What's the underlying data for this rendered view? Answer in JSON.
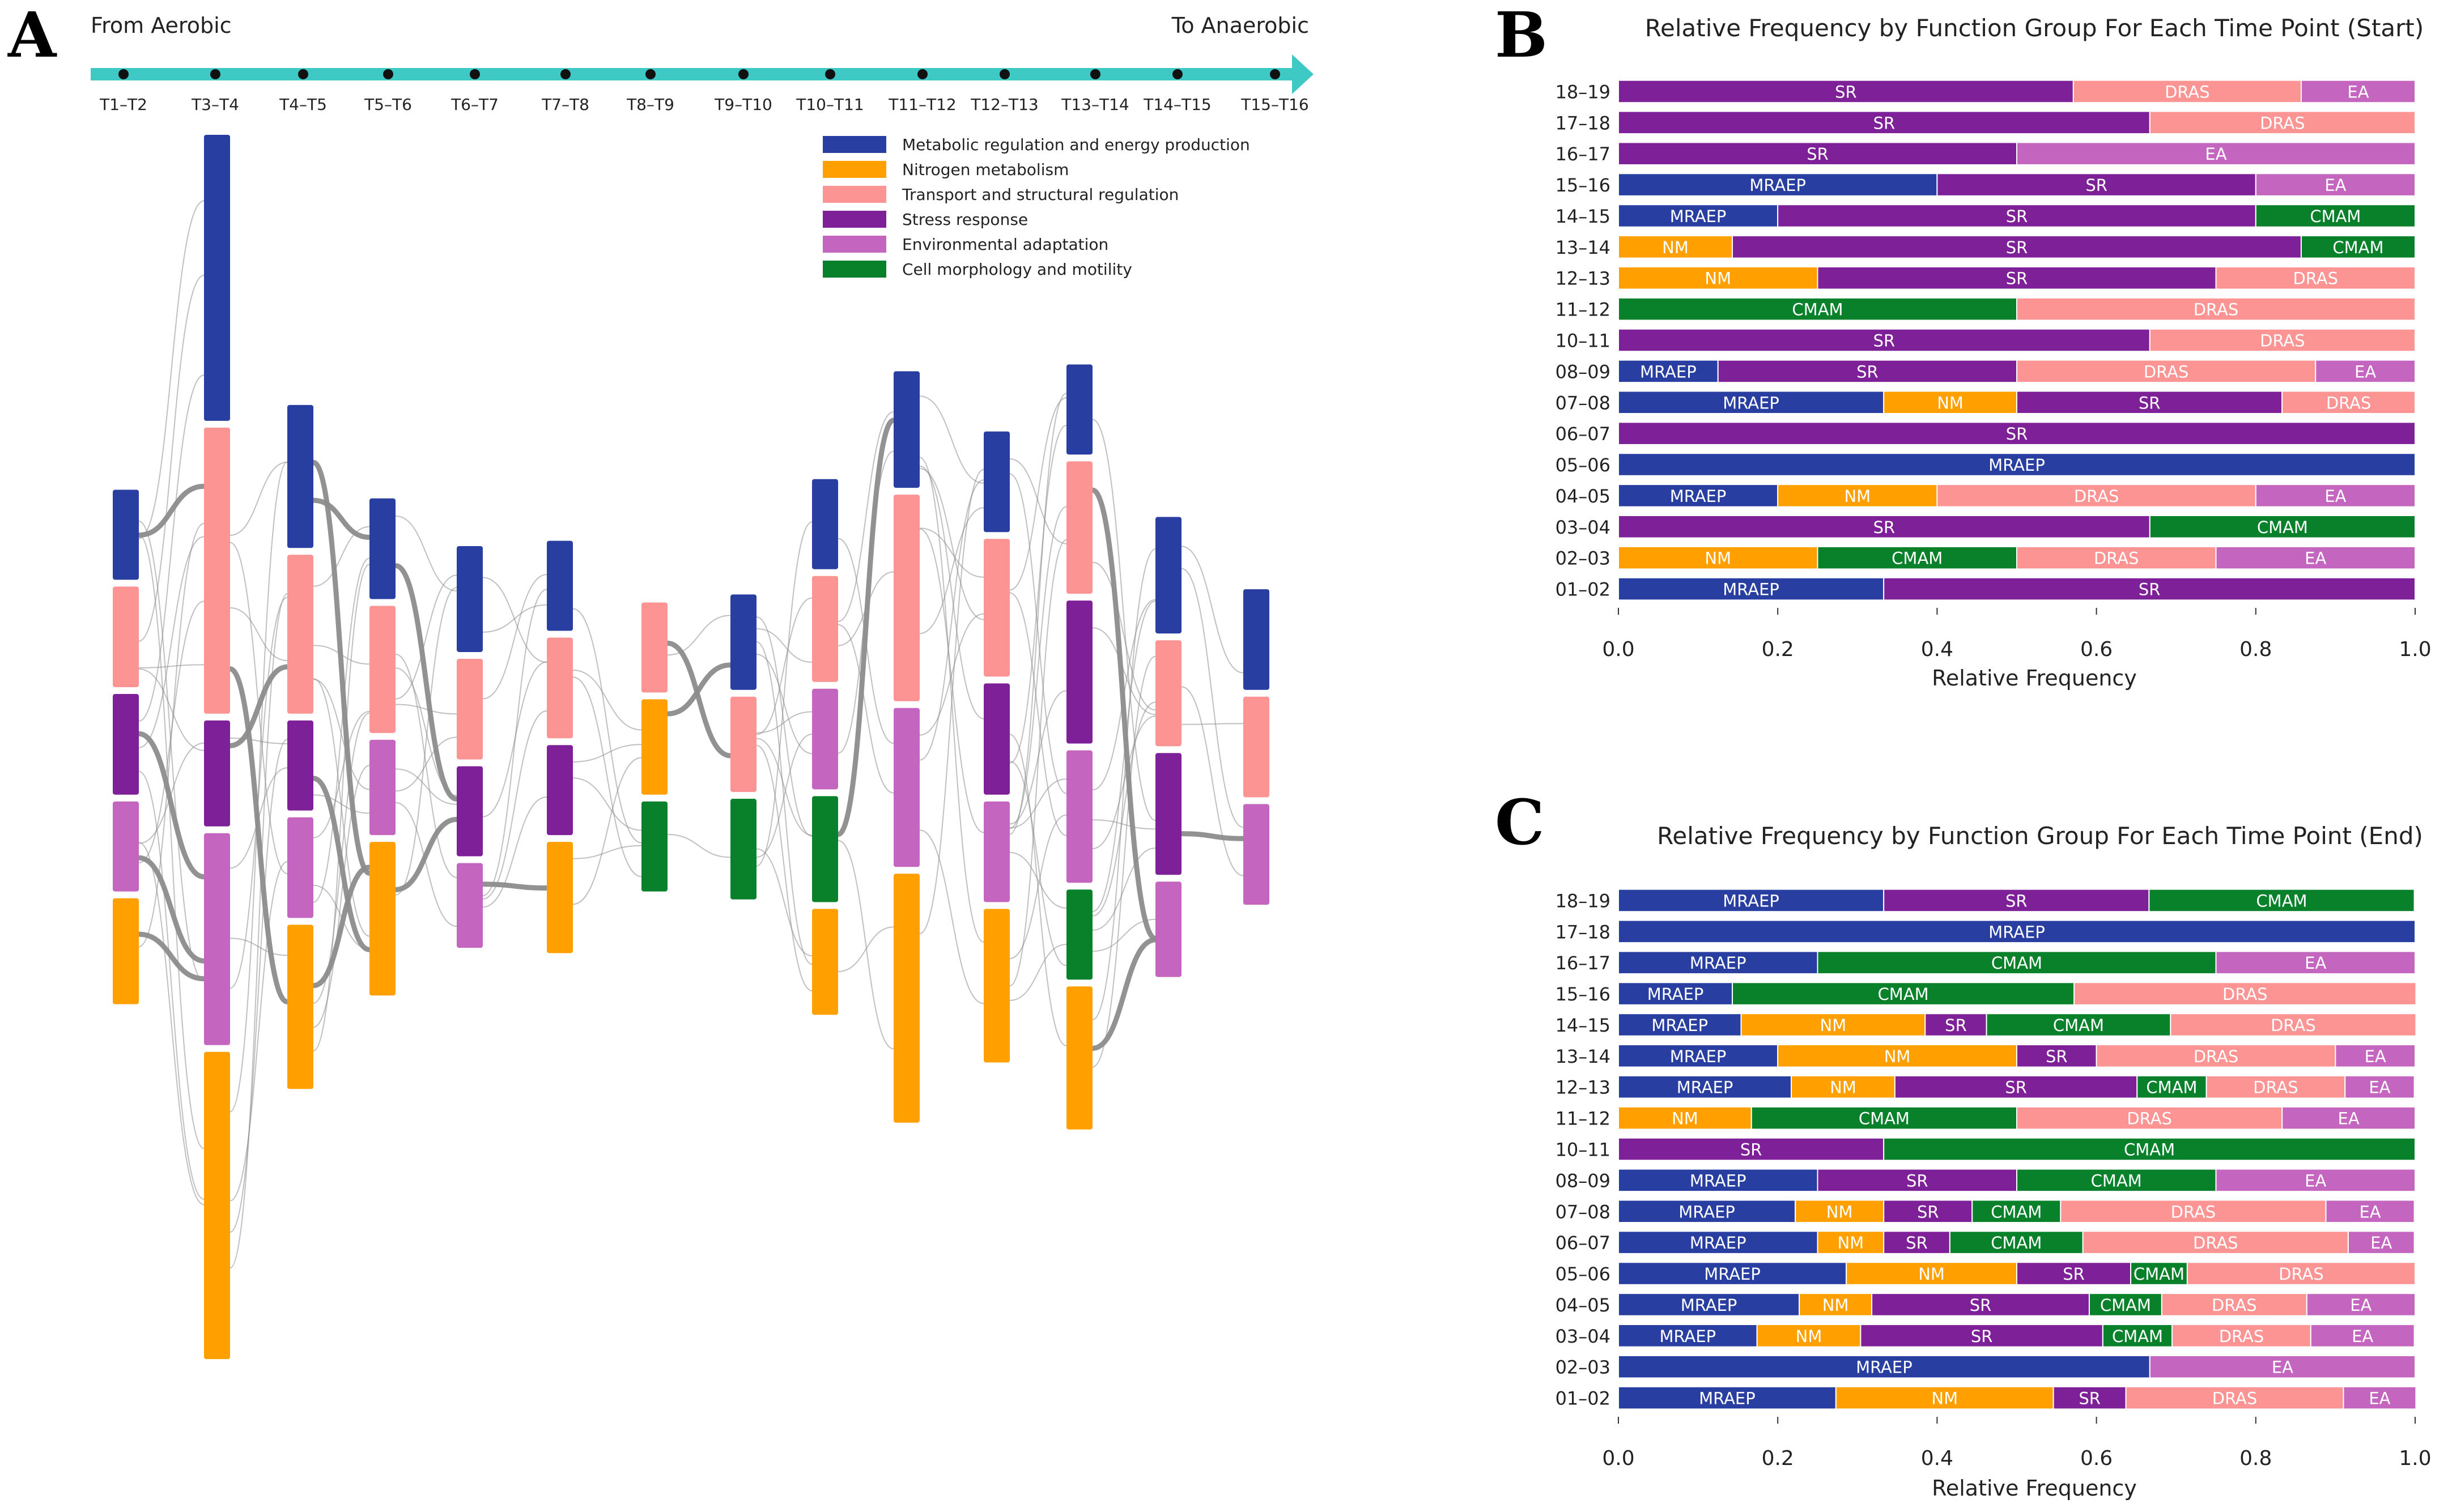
{
  "colors": {
    "MRAEP": "#283ea1",
    "NM": "#ffa000",
    "DRAS": "#fd9494",
    "SR": "#7e2097",
    "EA": "#c465bf",
    "CMAM": "#09802a",
    "timeline": "#3ec9c4",
    "link": "#8c8c8c"
  },
  "panelA": {
    "letter": "A",
    "start_label": "From Aerobic",
    "end_label": "To Anaerobic",
    "timepoints": [
      "T1–T2",
      "T3–T4",
      "T4–T5",
      "T5–T6",
      "T6–T7",
      "T7–T8",
      "T8–T9",
      "T9–T10",
      "T10–T11",
      "T11–T12",
      "T12–T13",
      "T13–T14",
      "T14–T15",
      "T15–T16"
    ],
    "legend": [
      {
        "label": "Metabolic regulation and energy production",
        "key": "MRAEP"
      },
      {
        "label": "Nitrogen metabolism",
        "key": "NM"
      },
      {
        "label": "Transport and structural regulation",
        "key": "DRAS"
      },
      {
        "label": "Stress response",
        "key": "SR"
      },
      {
        "label": "Environmental adaptation",
        "key": "EA"
      },
      {
        "label": "Cell morphology and motility",
        "key": "CMAM"
      }
    ],
    "nodes": [
      [
        {
          "g": "MRAEP",
          "h": 17
        },
        {
          "g": "DRAS",
          "h": 19
        },
        {
          "g": "SR",
          "h": 19
        },
        {
          "g": "EA",
          "h": 17
        },
        {
          "g": "NM",
          "h": 20
        }
      ],
      [
        {
          "g": "MRAEP",
          "h": 54
        },
        {
          "g": "DRAS",
          "h": 54
        },
        {
          "g": "SR",
          "h": 20
        },
        {
          "g": "EA",
          "h": 40
        },
        {
          "g": "NM",
          "h": 58
        }
      ],
      [
        {
          "g": "MRAEP",
          "h": 27
        },
        {
          "g": "DRAS",
          "h": 30
        },
        {
          "g": "SR",
          "h": 17
        },
        {
          "g": "EA",
          "h": 19
        },
        {
          "g": "NM",
          "h": 31
        }
      ],
      [
        {
          "g": "MRAEP",
          "h": 19
        },
        {
          "g": "DRAS",
          "h": 24
        },
        {
          "g": "EA",
          "h": 18
        },
        {
          "g": "NM",
          "h": 29
        }
      ],
      [
        {
          "g": "MRAEP",
          "h": 20
        },
        {
          "g": "DRAS",
          "h": 19
        },
        {
          "g": "SR",
          "h": 17
        },
        {
          "g": "EA",
          "h": 16
        }
      ],
      [
        {
          "g": "MRAEP",
          "h": 17
        },
        {
          "g": "DRAS",
          "h": 19
        },
        {
          "g": "SR",
          "h": 17
        },
        {
          "g": "NM",
          "h": 21
        }
      ],
      [
        {
          "g": "DRAS",
          "h": 17
        },
        {
          "g": "NM",
          "h": 18
        },
        {
          "g": "CMAM",
          "h": 17
        }
      ],
      [
        {
          "g": "MRAEP",
          "h": 18
        },
        {
          "g": "DRAS",
          "h": 18
        },
        {
          "g": "CMAM",
          "h": 19
        }
      ],
      [
        {
          "g": "MRAEP",
          "h": 17
        },
        {
          "g": "DRAS",
          "h": 20
        },
        {
          "g": "EA",
          "h": 19
        },
        {
          "g": "CMAM",
          "h": 20
        },
        {
          "g": "NM",
          "h": 20
        }
      ],
      [
        {
          "g": "MRAEP",
          "h": 22
        },
        {
          "g": "DRAS",
          "h": 39
        },
        {
          "g": "EA",
          "h": 30
        },
        {
          "g": "NM",
          "h": 47
        }
      ],
      [
        {
          "g": "MRAEP",
          "h": 19
        },
        {
          "g": "DRAS",
          "h": 26
        },
        {
          "g": "SR",
          "h": 21
        },
        {
          "g": "EA",
          "h": 19
        },
        {
          "g": "NM",
          "h": 29
        }
      ],
      [
        {
          "g": "MRAEP",
          "h": 17
        },
        {
          "g": "DRAS",
          "h": 25
        },
        {
          "g": "SR",
          "h": 27
        },
        {
          "g": "EA",
          "h": 25
        },
        {
          "g": "CMAM",
          "h": 17
        },
        {
          "g": "NM",
          "h": 27
        }
      ],
      [
        {
          "g": "MRAEP",
          "h": 22
        },
        {
          "g": "DRAS",
          "h": 20
        },
        {
          "g": "SR",
          "h": 23
        },
        {
          "g": "EA",
          "h": 18
        }
      ],
      [
        {
          "g": "MRAEP",
          "h": 19
        },
        {
          "g": "DRAS",
          "h": 19
        },
        {
          "g": "EA",
          "h": 19
        }
      ]
    ]
  },
  "chart_data": [
    {
      "type": "bar",
      "orientation": "horizontal",
      "stacked": true,
      "letter": "B",
      "title": "Relative Frequency by Function Group For Each Time Point (Start)",
      "xlabel": "Relative Frequency",
      "xlim": [
        0,
        1
      ],
      "xticks": [
        "0.0",
        "0.2",
        "0.4",
        "0.6",
        "0.8",
        "1.0"
      ],
      "categories": [
        "18–19",
        "17–18",
        "16–17",
        "15–16",
        "14–15",
        "13–14",
        "12–13",
        "11–12",
        "10–11",
        "08–09",
        "07–08",
        "06–07",
        "05–06",
        "04–05",
        "03–04",
        "02–03",
        "01–02"
      ],
      "rows": [
        [
          [
            "SR",
            0.571
          ],
          [
            "DRAS",
            0.286
          ],
          [
            "EA",
            0.143
          ]
        ],
        [
          [
            "SR",
            0.667
          ],
          [
            "DRAS",
            0.333
          ]
        ],
        [
          [
            "SR",
            0.5
          ],
          [
            "EA",
            0.5
          ]
        ],
        [
          [
            "MRAEP",
            0.4
          ],
          [
            "SR",
            0.4
          ],
          [
            "EA",
            0.2
          ]
        ],
        [
          [
            "MRAEP",
            0.2
          ],
          [
            "SR",
            0.6
          ],
          [
            "CMAM",
            0.2
          ]
        ],
        [
          [
            "NM",
            0.143
          ],
          [
            "SR",
            0.714
          ],
          [
            "CMAM",
            0.143
          ]
        ],
        [
          [
            "NM",
            0.25
          ],
          [
            "SR",
            0.5
          ],
          [
            "DRAS",
            0.25
          ]
        ],
        [
          [
            "CMAM",
            0.5
          ],
          [
            "DRAS",
            0.5
          ]
        ],
        [
          [
            "SR",
            0.667
          ],
          [
            "DRAS",
            0.333
          ]
        ],
        [
          [
            "MRAEP",
            0.125
          ],
          [
            "SR",
            0.375
          ],
          [
            "DRAS",
            0.375
          ],
          [
            "EA",
            0.125
          ]
        ],
        [
          [
            "MRAEP",
            0.333
          ],
          [
            "NM",
            0.167
          ],
          [
            "SR",
            0.333
          ],
          [
            "DRAS",
            0.167
          ]
        ],
        [
          [
            "SR",
            1.0
          ]
        ],
        [
          [
            "MRAEP",
            1.0
          ]
        ],
        [
          [
            "MRAEP",
            0.2
          ],
          [
            "NM",
            0.2
          ],
          [
            "DRAS",
            0.4
          ],
          [
            "EA",
            0.2
          ]
        ],
        [
          [
            "SR",
            0.667
          ],
          [
            "CMAM",
            0.333
          ]
        ],
        [
          [
            "NM",
            0.25
          ],
          [
            "CMAM",
            0.25
          ],
          [
            "DRAS",
            0.25
          ],
          [
            "EA",
            0.25
          ]
        ],
        [
          [
            "MRAEP",
            0.333
          ],
          [
            "SR",
            0.667
          ]
        ]
      ]
    },
    {
      "type": "bar",
      "orientation": "horizontal",
      "stacked": true,
      "letter": "C",
      "title": "Relative Frequency by Function Group For Each Time Point (End)",
      "xlabel": "Relative Frequency",
      "xlim": [
        0,
        1
      ],
      "xticks": [
        "0.0",
        "0.2",
        "0.4",
        "0.6",
        "0.8",
        "1.0"
      ],
      "categories": [
        "18–19",
        "17–18",
        "16–17",
        "15–16",
        "14–15",
        "13–14",
        "12–13",
        "11–12",
        "10–11",
        "08–09",
        "07–08",
        "06–07",
        "05–06",
        "04–05",
        "03–04",
        "02–03",
        "01–02"
      ],
      "rows": [
        [
          [
            "MRAEP",
            0.333
          ],
          [
            "SR",
            0.333
          ],
          [
            "CMAM",
            0.333
          ]
        ],
        [
          [
            "MRAEP",
            1.0
          ]
        ],
        [
          [
            "MRAEP",
            0.25
          ],
          [
            "CMAM",
            0.5
          ],
          [
            "EA",
            0.25
          ]
        ],
        [
          [
            "MRAEP",
            0.143
          ],
          [
            "CMAM",
            0.429
          ],
          [
            "DRAS",
            0.429
          ]
        ],
        [
          [
            "MRAEP",
            0.154
          ],
          [
            "NM",
            0.231
          ],
          [
            "SR",
            0.077
          ],
          [
            "CMAM",
            0.231
          ],
          [
            "DRAS",
            0.308
          ]
        ],
        [
          [
            "MRAEP",
            0.2
          ],
          [
            "NM",
            0.3
          ],
          [
            "SR",
            0.1
          ],
          [
            "DRAS",
            0.3
          ],
          [
            "EA",
            0.1
          ]
        ],
        [
          [
            "MRAEP",
            0.217
          ],
          [
            "NM",
            0.13
          ],
          [
            "SR",
            0.304
          ],
          [
            "CMAM",
            0.087
          ],
          [
            "DRAS",
            0.174
          ],
          [
            "EA",
            0.087
          ]
        ],
        [
          [
            "NM",
            0.167
          ],
          [
            "CMAM",
            0.333
          ],
          [
            "DRAS",
            0.333
          ],
          [
            "EA",
            0.167
          ]
        ],
        [
          [
            "SR",
            0.333
          ],
          [
            "CMAM",
            0.667
          ]
        ],
        [
          [
            "MRAEP",
            0.25
          ],
          [
            "SR",
            0.25
          ],
          [
            "CMAM",
            0.25
          ],
          [
            "EA",
            0.25
          ]
        ],
        [
          [
            "MRAEP",
            0.222
          ],
          [
            "NM",
            0.111
          ],
          [
            "SR",
            0.111
          ],
          [
            "CMAM",
            0.111
          ],
          [
            "DRAS",
            0.333
          ],
          [
            "EA",
            0.111
          ]
        ],
        [
          [
            "MRAEP",
            0.25
          ],
          [
            "NM",
            0.083
          ],
          [
            "SR",
            0.083
          ],
          [
            "CMAM",
            0.167
          ],
          [
            "DRAS",
            0.333
          ],
          [
            "EA",
            0.083
          ]
        ],
        [
          [
            "MRAEP",
            0.286
          ],
          [
            "NM",
            0.214
          ],
          [
            "SR",
            0.143
          ],
          [
            "CMAM",
            0.071
          ],
          [
            "DRAS",
            0.286
          ]
        ],
        [
          [
            "MRAEP",
            0.227
          ],
          [
            "NM",
            0.091
          ],
          [
            "SR",
            0.273
          ],
          [
            "CMAM",
            0.091
          ],
          [
            "DRAS",
            0.182
          ],
          [
            "EA",
            0.136
          ]
        ],
        [
          [
            "MRAEP",
            0.174
          ],
          [
            "NM",
            0.13
          ],
          [
            "SR",
            0.304
          ],
          [
            "CMAM",
            0.087
          ],
          [
            "DRAS",
            0.174
          ],
          [
            "EA",
            0.13
          ]
        ],
        [
          [
            "MRAEP",
            0.667
          ],
          [
            "EA",
            0.333
          ]
        ],
        [
          [
            "MRAEP",
            0.273
          ],
          [
            "NM",
            0.273
          ],
          [
            "SR",
            0.091
          ],
          [
            "DRAS",
            0.273
          ],
          [
            "EA",
            0.091
          ]
        ]
      ]
    }
  ]
}
